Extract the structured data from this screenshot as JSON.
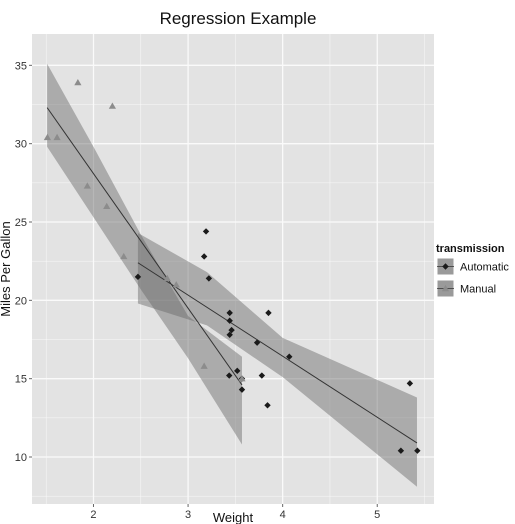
{
  "chart_data": {
    "type": "scatter",
    "title": "Regression Example",
    "xlabel": "Weight",
    "ylabel": "Miles Per Gallon",
    "xlim": [
      1.35,
      5.6
    ],
    "ylim": [
      7,
      37
    ],
    "x_ticks": [
      "2",
      "3",
      "4",
      "5"
    ],
    "y_ticks": [
      "10",
      "15",
      "20",
      "25",
      "30",
      "35"
    ],
    "grid": true,
    "legend": {
      "title": "transmission",
      "placement": "right",
      "entries": [
        "Automatic",
        "Manual"
      ]
    },
    "series": [
      {
        "name": "Automatic",
        "marker": "diamond",
        "points": [
          {
            "x": 2.47,
            "y": 21.5
          },
          {
            "x": 3.17,
            "y": 22.8
          },
          {
            "x": 3.19,
            "y": 24.4
          },
          {
            "x": 3.22,
            "y": 21.4
          },
          {
            "x": 3.44,
            "y": 18.7
          },
          {
            "x": 3.44,
            "y": 19.2
          },
          {
            "x": 3.44,
            "y": 17.8
          },
          {
            "x": 3.46,
            "y": 18.1
          },
          {
            "x": 3.52,
            "y": 15.5
          },
          {
            "x": 3.57,
            "y": 14.3
          },
          {
            "x": 3.57,
            "y": 15.0
          },
          {
            "x": 3.73,
            "y": 17.3
          },
          {
            "x": 3.78,
            "y": 15.2
          },
          {
            "x": 3.84,
            "y": 13.3
          },
          {
            "x": 3.85,
            "y": 19.2
          },
          {
            "x": 4.07,
            "y": 16.4
          },
          {
            "x": 5.25,
            "y": 10.4
          },
          {
            "x": 5.345,
            "y": 14.7
          },
          {
            "x": 5.424,
            "y": 10.4
          },
          {
            "x": 3.435,
            "y": 15.2
          }
        ],
        "fit": {
          "x": [
            2.47,
            5.42
          ],
          "y": [
            22.4,
            10.9
          ]
        },
        "band": {
          "x": [
            2.47,
            3.2,
            4.0,
            5.42
          ],
          "upper": [
            24.3,
            21.8,
            17.6,
            13.8
          ],
          "lower": [
            19.8,
            18.4,
            15.1,
            8.1
          ]
        }
      },
      {
        "name": "Manual",
        "marker": "triangle",
        "points": [
          {
            "x": 1.513,
            "y": 30.4
          },
          {
            "x": 1.615,
            "y": 30.4
          },
          {
            "x": 1.835,
            "y": 33.9
          },
          {
            "x": 1.935,
            "y": 27.3
          },
          {
            "x": 2.14,
            "y": 26.0
          },
          {
            "x": 2.2,
            "y": 32.4
          },
          {
            "x": 2.32,
            "y": 22.8
          },
          {
            "x": 2.62,
            "y": 21.0
          },
          {
            "x": 2.77,
            "y": 19.7
          },
          {
            "x": 2.78,
            "y": 21.4
          },
          {
            "x": 2.875,
            "y": 21.0
          },
          {
            "x": 3.17,
            "y": 15.8
          },
          {
            "x": 3.57,
            "y": 15.0
          }
        ],
        "fit": {
          "x": [
            1.51,
            3.57
          ],
          "y": [
            32.3,
            14.6
          ]
        },
        "band": {
          "x": [
            1.51,
            2.0,
            2.5,
            3.0,
            3.57
          ],
          "upper": [
            35.1,
            29.8,
            24.2,
            19.0,
            16.4
          ],
          "lower": [
            29.8,
            25.3,
            20.7,
            16.3,
            10.8
          ]
        }
      }
    ]
  }
}
